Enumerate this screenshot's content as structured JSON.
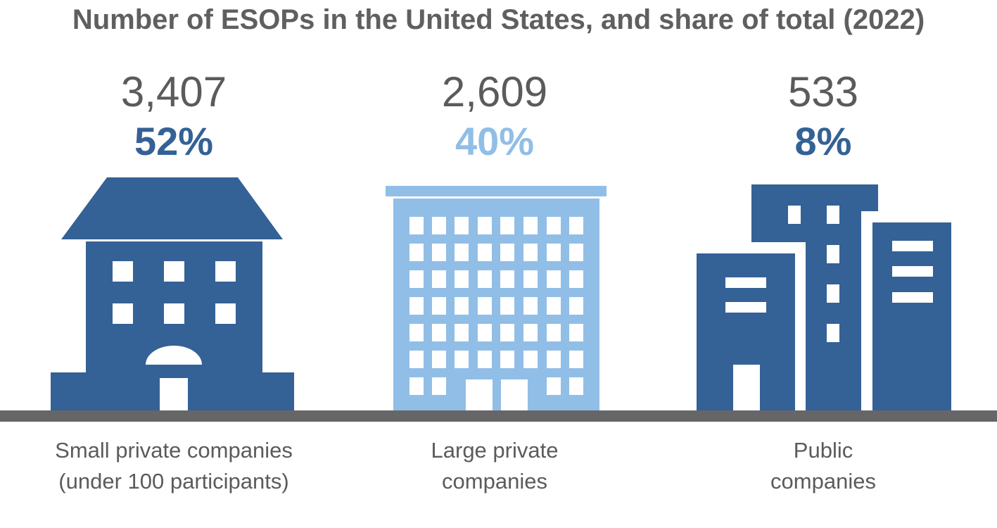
{
  "colors": {
    "dark_blue": "#346196",
    "light_blue": "#91bee6",
    "text_gray": "#5b5b5d",
    "ground_gray": "#666668"
  },
  "chart_data": {
    "type": "pictogram",
    "title": "Number of ESOPs in the United States, and share of total (2022)",
    "categories": [
      {
        "label_line1": "Small private companies",
        "label_line2": "(under 100 participants)",
        "count": "3,407",
        "share": "52%",
        "icon": "house-icon",
        "color": "#346196"
      },
      {
        "label_line1": "Large private",
        "label_line2": "companies",
        "count": "2,609",
        "share": "40%",
        "icon": "office-tower-icon",
        "color": "#91bee6"
      },
      {
        "label_line1": "Public",
        "label_line2": "companies",
        "count": "533",
        "share": "8%",
        "icon": "city-buildings-icon",
        "color": "#346196"
      }
    ]
  }
}
